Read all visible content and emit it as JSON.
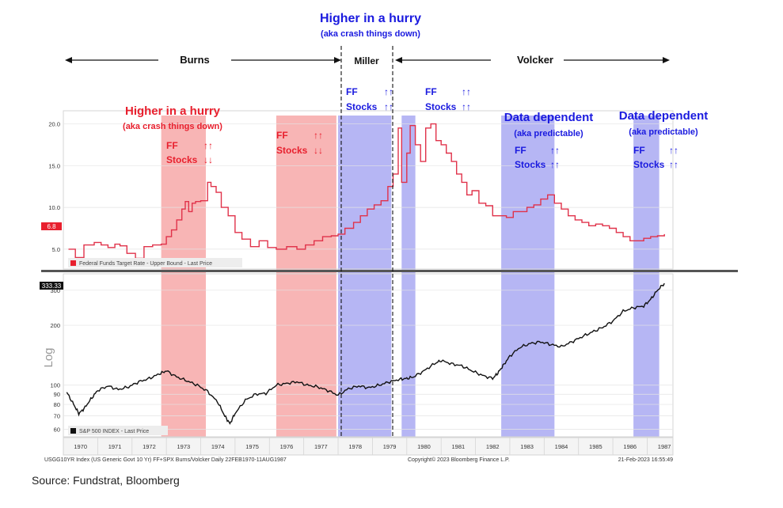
{
  "source": "Source: Fundstrat, Bloomberg",
  "eras": [
    {
      "label": "Burns",
      "start": 1970.2,
      "end": 1978.0
    },
    {
      "label": "Miller",
      "start": 1978.0,
      "end": 1979.6
    },
    {
      "label": "Volcker",
      "start": 1979.6,
      "end": 1987.65
    }
  ],
  "top_callout": {
    "title": "Higher in a hurry",
    "sub": "(aka crash things down)"
  },
  "annotations": [
    {
      "id": "burns-hurry",
      "color": "#e8202e",
      "lines": [
        "Higher in a hurry",
        "(aka crash things down)"
      ]
    },
    {
      "id": "burns-ff1",
      "color": "#e8202e",
      "ff": "FF",
      "ff_arrows": "↑↑",
      "stocks": "Stocks",
      "stocks_arrows": "↓↓"
    },
    {
      "id": "burns-ff2",
      "color": "#e8202e",
      "ff": "FF",
      "ff_arrows": "↑↑",
      "stocks": "Stocks",
      "stocks_arrows": "↓↓"
    },
    {
      "id": "miller-ff",
      "color": "#1a1adf",
      "ff": "FF",
      "ff_arrows": "↑↑",
      "stocks": "Stocks",
      "stocks_arrows": "↑↑"
    },
    {
      "id": "volcker-ff",
      "color": "#1a1adf",
      "ff": "FF",
      "ff_arrows": "↑↑",
      "stocks": "Stocks",
      "stocks_arrows": "↑↑"
    },
    {
      "id": "dd1",
      "color": "#1a1adf",
      "lines": [
        "Data dependent",
        "(aka predictable)"
      ],
      "ff": "FF",
      "ff_arrows": "↑↑",
      "stocks": "Stocks",
      "stocks_arrows": "↑↑"
    },
    {
      "id": "dd2",
      "color": "#1a1adf",
      "lines": [
        "Data dependent",
        "(aka predictable)"
      ],
      "ff": "FF",
      "ff_arrows": "↑↑",
      "stocks": "Stocks",
      "stocks_arrows": "↑↑"
    }
  ],
  "colors": {
    "red_band": "#f7a8a8",
    "blue_band": "#a9a9f2",
    "ff_line": "#e0324a",
    "spx_line": "#111111",
    "red_text": "#e8202e",
    "blue_text": "#1a1adf"
  },
  "chart_data": [
    {
      "type": "line",
      "panel": "top",
      "legend": "Federal Funds Target Rate - Upper Bound - Last Price",
      "last_value_label": "6.8",
      "yticks": [
        5.0,
        10.0,
        15.0,
        20.0
      ],
      "ytick_labels": [
        "5.0",
        "10.0",
        "15.0",
        "20.0"
      ],
      "ylim": [
        3.0,
        21.0
      ],
      "xlim": [
        1970.0,
        1987.75
      ],
      "bands": [
        {
          "start": 1972.85,
          "end": 1974.15,
          "color": "red"
        },
        {
          "start": 1976.2,
          "end": 1977.95,
          "color": "red"
        },
        {
          "start": 1978.0,
          "end": 1979.55,
          "color": "blue"
        },
        {
          "start": 1979.85,
          "end": 1980.25,
          "color": "blue"
        },
        {
          "start": 1982.75,
          "end": 1984.3,
          "color": "blue"
        },
        {
          "start": 1986.6,
          "end": 1987.35,
          "color": "blue"
        }
      ],
      "series": [
        {
          "x": [
            1970.15,
            1970.35,
            1970.6,
            1970.9,
            1971.1,
            1971.3,
            1971.5,
            1971.65,
            1971.85,
            1972.1,
            1972.35,
            1972.6,
            1972.85,
            1973.0,
            1973.15,
            1973.3,
            1973.45,
            1973.55,
            1973.65,
            1973.75,
            1973.85,
            1974.0,
            1974.2,
            1974.3,
            1974.45,
            1974.6,
            1974.8,
            1975.0,
            1975.2,
            1975.45,
            1975.7,
            1975.95,
            1976.2,
            1976.5,
            1976.8,
            1977.05,
            1977.3,
            1977.55,
            1977.8,
            1978.0,
            1978.2,
            1978.45,
            1978.65,
            1978.85,
            1979.05,
            1979.25,
            1979.45,
            1979.6,
            1979.75,
            1979.85,
            1980.0,
            1980.1,
            1980.25,
            1980.4,
            1980.55,
            1980.7,
            1980.85,
            1981.0,
            1981.15,
            1981.3,
            1981.45,
            1981.6,
            1981.75,
            1981.9,
            1982.1,
            1982.3,
            1982.5,
            1982.7,
            1982.9,
            1983.1,
            1983.3,
            1983.5,
            1983.7,
            1983.9,
            1984.1,
            1984.3,
            1984.5,
            1984.7,
            1984.9,
            1985.1,
            1985.3,
            1985.5,
            1985.7,
            1985.9,
            1986.1,
            1986.3,
            1986.5,
            1986.7,
            1986.9,
            1987.1,
            1987.3,
            1987.5
          ],
          "y": [
            5.0,
            4.0,
            5.5,
            5.8,
            5.5,
            5.2,
            5.6,
            5.4,
            4.5,
            3.9,
            5.3,
            5.5,
            5.6,
            6.5,
            7.3,
            8.5,
            9.8,
            10.7,
            9.5,
            10.5,
            10.7,
            10.8,
            13.0,
            12.5,
            11.8,
            10.0,
            9.0,
            7.0,
            6.2,
            5.3,
            6.0,
            5.2,
            5.0,
            5.3,
            5.0,
            5.5,
            6.0,
            6.5,
            6.6,
            6.8,
            7.5,
            8.2,
            9.0,
            9.8,
            10.3,
            10.8,
            12.5,
            14.0,
            19.5,
            13.0,
            16.5,
            19.8,
            17.5,
            15.5,
            19.5,
            20.0,
            18.0,
            17.5,
            16.5,
            15.5,
            14.0,
            13.0,
            11.5,
            12.0,
            10.5,
            10.2,
            9.0,
            9.0,
            8.8,
            9.5,
            9.5,
            10.0,
            10.3,
            11.0,
            11.5,
            10.5,
            9.8,
            9.0,
            8.5,
            8.2,
            7.8,
            8.0,
            7.8,
            7.5,
            7.0,
            6.5,
            6.0,
            6.0,
            6.3,
            6.5,
            6.6,
            6.8
          ]
        }
      ]
    },
    {
      "type": "line",
      "panel": "bottom",
      "ylabel": "Log",
      "log_scale": true,
      "legend": "S&P 500 INDEX - Last Price",
      "last_value_label": "333.33",
      "yticks": [
        60,
        70,
        80,
        90,
        100,
        200,
        300
      ],
      "ytick_labels": [
        "60",
        "70",
        "80",
        "90",
        "100",
        "200",
        "300"
      ],
      "ylim": [
        56,
        350
      ],
      "xlim": [
        1970.0,
        1987.75
      ],
      "series": [
        {
          "x": [
            1970.1,
            1970.3,
            1970.45,
            1970.6,
            1970.8,
            1971.0,
            1971.3,
            1971.6,
            1971.9,
            1972.2,
            1972.5,
            1972.8,
            1973.0,
            1973.3,
            1973.6,
            1973.9,
            1974.2,
            1974.5,
            1974.7,
            1974.85,
            1975.0,
            1975.3,
            1975.6,
            1975.9,
            1976.2,
            1976.5,
            1976.8,
            1977.1,
            1977.4,
            1977.7,
            1978.0,
            1978.3,
            1978.6,
            1978.9,
            1979.2,
            1979.5,
            1979.8,
            1980.0,
            1980.2,
            1980.5,
            1980.8,
            1981.0,
            1981.3,
            1981.6,
            1981.9,
            1982.2,
            1982.5,
            1982.65,
            1982.8,
            1983.0,
            1983.3,
            1983.6,
            1983.9,
            1984.2,
            1984.5,
            1984.8,
            1985.1,
            1985.4,
            1985.7,
            1986.0,
            1986.3,
            1986.6,
            1986.9,
            1987.1,
            1987.3,
            1987.5
          ],
          "y": [
            92,
            80,
            72,
            76,
            85,
            94,
            99,
            95,
            98,
            104,
            108,
            114,
            118,
            110,
            105,
            100,
            93,
            82,
            70,
            64,
            72,
            84,
            90,
            91,
            100,
            102,
            104,
            100,
            98,
            94,
            89,
            96,
            99,
            97,
            100,
            104,
            107,
            108,
            110,
            118,
            128,
            133,
            128,
            125,
            118,
            112,
            108,
            115,
            125,
            140,
            155,
            162,
            165,
            160,
            156,
            165,
            175,
            185,
            195,
            210,
            235,
            245,
            250,
            270,
            300,
            325
          ]
        }
      ]
    }
  ],
  "x_axis": {
    "years": [
      "1970",
      "1971",
      "1972",
      "1973",
      "1974",
      "1975",
      "1976",
      "1977",
      "1978",
      "1979",
      "1980",
      "1981",
      "1982",
      "1983",
      "1984",
      "1985",
      "1986",
      "1987"
    ]
  },
  "footer": {
    "left": "USGG10YR Index (US Generic Govt 10 Yr) FF+SPX Burns/Volcker  Daily 22FEB1970-11AUG1987",
    "center": "Copyright© 2023 Bloomberg Finance L.P.",
    "right": "21-Feb-2023 16:55:49"
  }
}
